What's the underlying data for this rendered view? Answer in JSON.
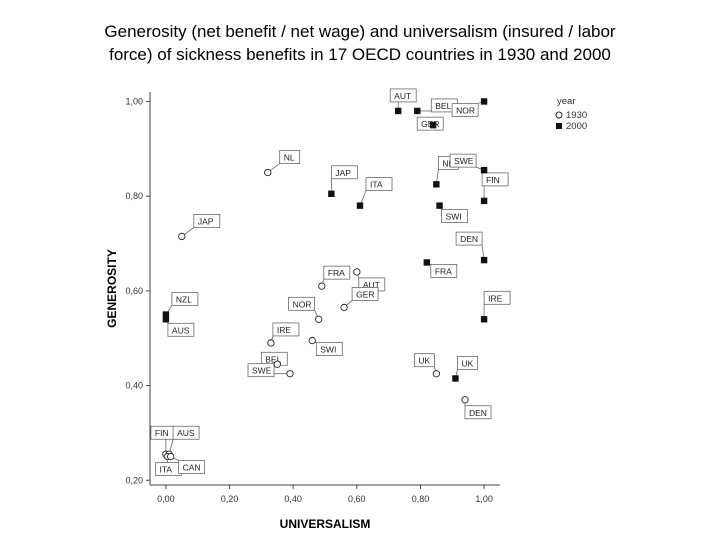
{
  "chart_data": {
    "type": "scatter",
    "title_line1": "Generosity (net benefit / net wage) and universalism (insured / labor",
    "title_line2": "force) of sickness benefits in 17 OECD countries in 1930 and 2000",
    "xlabel": "UNIVERSALISM",
    "ylabel": "GENEROSITY",
    "xlim": [
      -0.05,
      1.05
    ],
    "ylim": [
      0.19,
      1.02
    ],
    "xticks": [
      "0,00",
      "0,20",
      "0,40",
      "0,60",
      "0,80",
      "1,00"
    ],
    "xtick_values": [
      0.0,
      0.2,
      0.4,
      0.6,
      0.8,
      1.0
    ],
    "yticks": [
      "0,20",
      "0,40",
      "0,60",
      "0,80",
      "1,00"
    ],
    "ytick_values": [
      0.2,
      0.4,
      0.6,
      0.8,
      1.0
    ],
    "grid": false,
    "legend": {
      "title": "year",
      "position": "top-right",
      "entries": [
        {
          "label": "1930",
          "marker": "circle-open"
        },
        {
          "label": "2000",
          "marker": "square-filled"
        }
      ]
    },
    "series": [
      {
        "name": "1930",
        "marker": "circle-open",
        "points": [
          {
            "label": "NL",
            "x": 0.32,
            "y": 0.85
          },
          {
            "label": "JAP",
            "x": 0.05,
            "y": 0.715
          },
          {
            "label": "AUT",
            "x": 0.6,
            "y": 0.64
          },
          {
            "label": "FRA",
            "x": 0.49,
            "y": 0.61
          },
          {
            "label": "GER",
            "x": 0.56,
            "y": 0.565
          },
          {
            "label": "NOR",
            "x": 0.48,
            "y": 0.54
          },
          {
            "label": "IRE",
            "x": 0.33,
            "y": 0.49
          },
          {
            "label": "SWI",
            "x": 0.46,
            "y": 0.495
          },
          {
            "label": "BEL",
            "x": 0.35,
            "y": 0.445
          },
          {
            "label": "SWE",
            "x": 0.39,
            "y": 0.425
          },
          {
            "label": "UK",
            "x": 0.85,
            "y": 0.425
          },
          {
            "label": "DEN",
            "x": 0.94,
            "y": 0.37
          },
          {
            "label": "FIN",
            "x": 0.0,
            "y": 0.255
          },
          {
            "label": "AUS",
            "x": 0.01,
            "y": 0.255
          },
          {
            "label": "ITA",
            "x": 0.005,
            "y": 0.25
          },
          {
            "label": "CAN",
            "x": 0.015,
            "y": 0.25
          }
        ]
      },
      {
        "name": "2000",
        "marker": "square-filled",
        "points": [
          {
            "label": "AUT",
            "x": 0.73,
            "y": 0.98
          },
          {
            "label": "BEL",
            "x": 0.79,
            "y": 0.98
          },
          {
            "label": "NOR",
            "x": 1.0,
            "y": 1.0
          },
          {
            "label": "GER",
            "x": 0.84,
            "y": 0.95
          },
          {
            "label": "NL",
            "x": 0.85,
            "y": 0.825
          },
          {
            "label": "SWE",
            "x": 1.0,
            "y": 0.855
          },
          {
            "label": "FIN",
            "x": 1.0,
            "y": 0.79
          },
          {
            "label": "JAP",
            "x": 0.52,
            "y": 0.805
          },
          {
            "label": "ITA",
            "x": 0.61,
            "y": 0.78
          },
          {
            "label": "SWI",
            "x": 0.86,
            "y": 0.78
          },
          {
            "label": "DEN",
            "x": 1.0,
            "y": 0.665
          },
          {
            "label": "FRA",
            "x": 0.82,
            "y": 0.66
          },
          {
            "label": "IRE",
            "x": 1.0,
            "y": 0.54
          },
          {
            "label": "NZL",
            "x": 0.0,
            "y": 0.55
          },
          {
            "label": "AUS",
            "x": 0.0,
            "y": 0.54
          },
          {
            "label": "UK",
            "x": 0.91,
            "y": 0.415
          }
        ]
      }
    ]
  }
}
